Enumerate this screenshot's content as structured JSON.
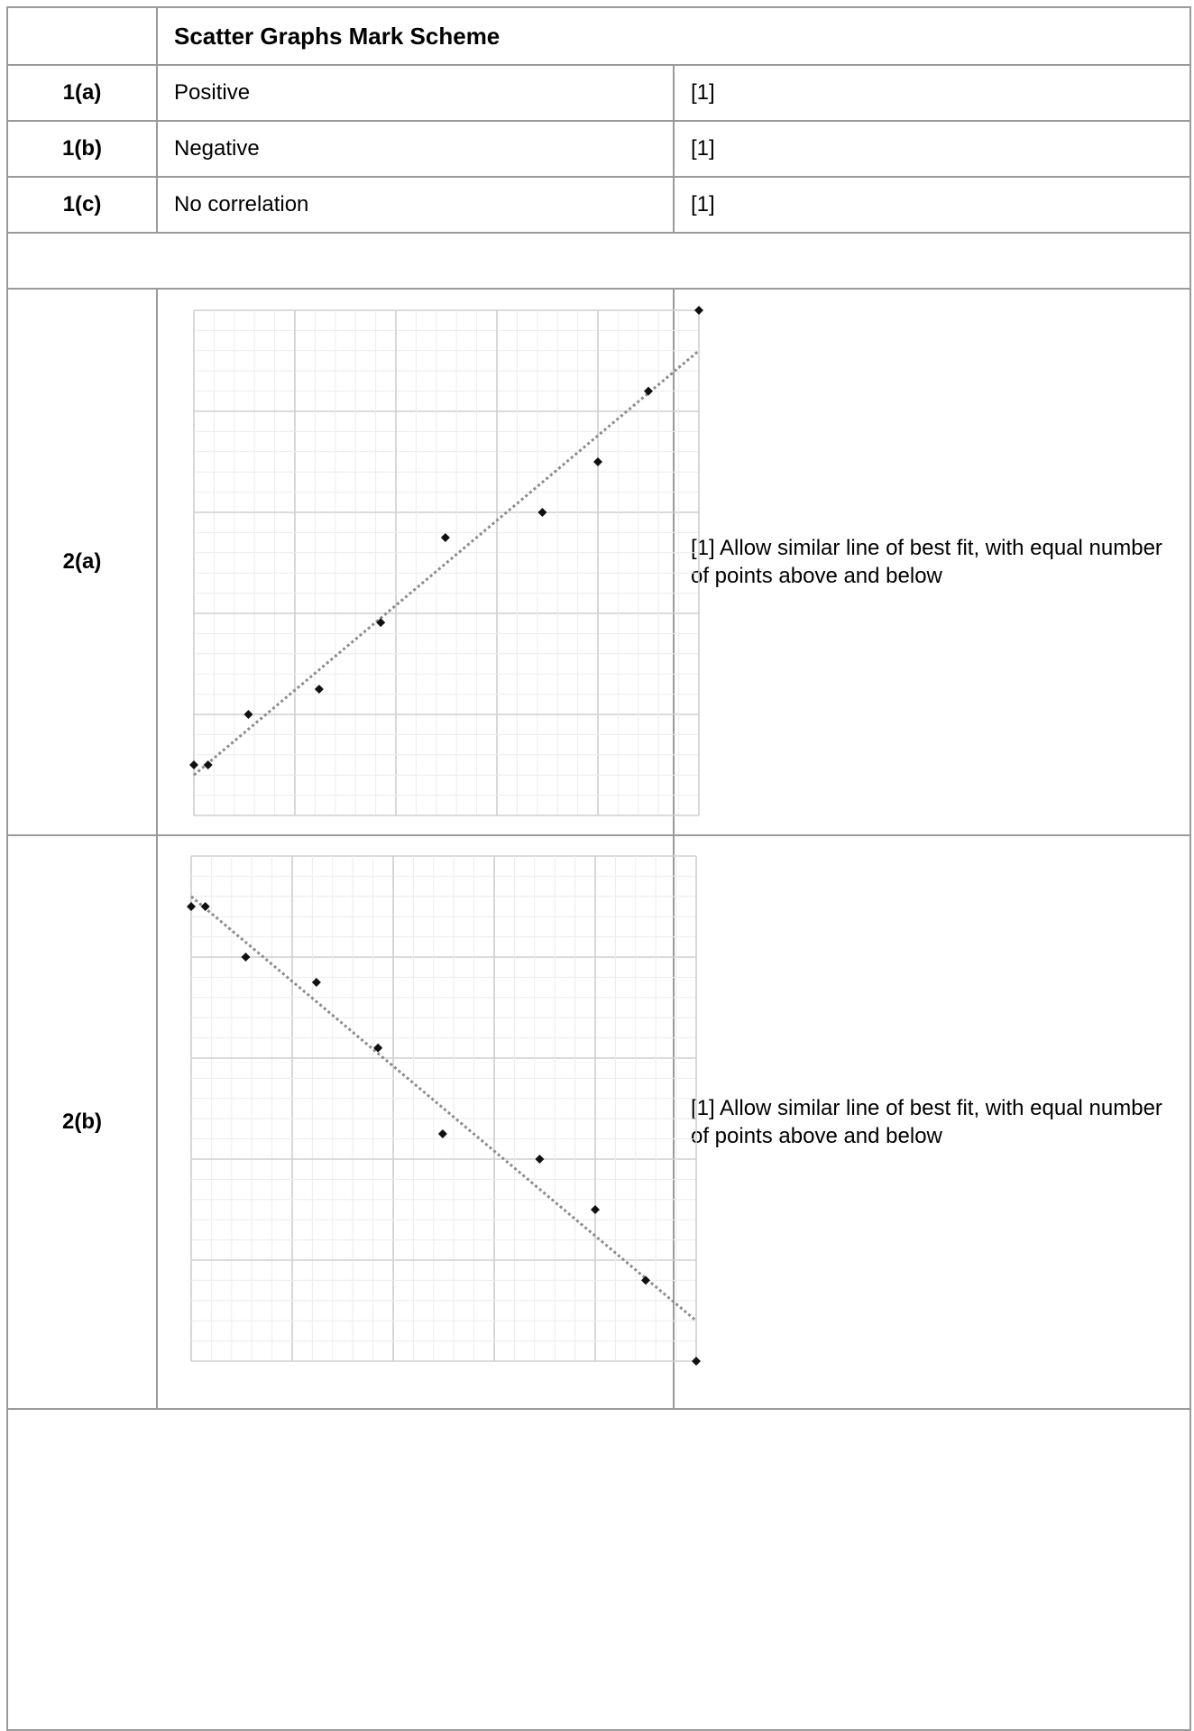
{
  "header": {
    "title": "Scatter Graphs Mark Scheme"
  },
  "rows": [
    {
      "label": "1(a)",
      "answer": "Positive",
      "mark": "[1]"
    },
    {
      "label": "1(b)",
      "answer": "Negative",
      "mark": "[1]"
    },
    {
      "label": "1(c)",
      "answer": "No correlation",
      "mark": "[1]"
    }
  ],
  "graph_rows": [
    {
      "label": "2(a)",
      "note": "[1] Allow similar line of best fit, with equal number of points above and below"
    },
    {
      "label": "2(b)",
      "note": "[1] Allow similar line of best fit, with equal number of points above and below"
    }
  ],
  "chart_data": [
    {
      "type": "scatter",
      "title": "",
      "xlabel": "",
      "ylabel": "",
      "xlim": [
        0,
        50
      ],
      "ylim": [
        0,
        50
      ],
      "grid": true,
      "points": [
        {
          "x": 0,
          "y": 5
        },
        {
          "x": 1.4,
          "y": 5
        },
        {
          "x": 5.4,
          "y": 10
        },
        {
          "x": 12.4,
          "y": 12.5
        },
        {
          "x": 18.5,
          "y": 19.1
        },
        {
          "x": 24.9,
          "y": 27.5
        },
        {
          "x": 34.5,
          "y": 30
        },
        {
          "x": 40,
          "y": 35
        },
        {
          "x": 45,
          "y": 42
        },
        {
          "x": 50,
          "y": 50
        }
      ],
      "line_of_best_fit": {
        "x": [
          0,
          50
        ],
        "y": [
          4,
          46
        ]
      }
    },
    {
      "type": "scatter",
      "title": "",
      "xlabel": "",
      "ylabel": "",
      "xlim": [
        0,
        50
      ],
      "ylim": [
        0,
        50
      ],
      "grid": true,
      "points": [
        {
          "x": 0,
          "y": 45
        },
        {
          "x": 1.4,
          "y": 45
        },
        {
          "x": 5.4,
          "y": 40
        },
        {
          "x": 12.4,
          "y": 37.5
        },
        {
          "x": 18.5,
          "y": 31
        },
        {
          "x": 24.9,
          "y": 22.5
        },
        {
          "x": 34.5,
          "y": 20
        },
        {
          "x": 40,
          "y": 15
        },
        {
          "x": 45,
          "y": 8
        },
        {
          "x": 50,
          "y": 0
        }
      ],
      "line_of_best_fit": {
        "x": [
          0,
          50
        ],
        "y": [
          46,
          4
        ]
      }
    }
  ]
}
